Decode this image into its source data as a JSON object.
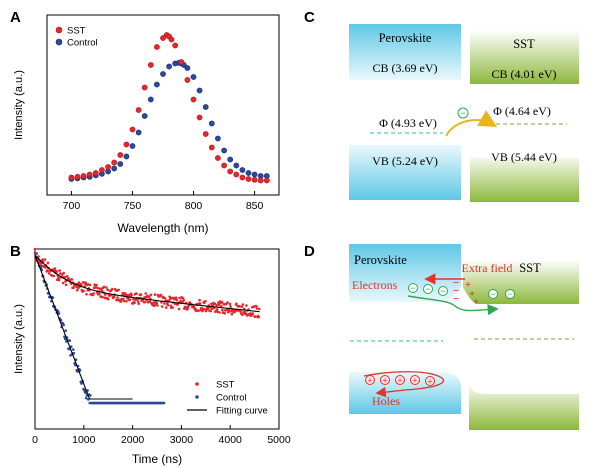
{
  "panels": {
    "A": {
      "letter": "A",
      "xlabel": "Wavelength (nm)",
      "ylabel": "Intensity (a.u.)",
      "legend": [
        "SST",
        "Control"
      ]
    },
    "B": {
      "letter": "B",
      "xlabel": "Time (ns)",
      "ylabel": "Intensity (a.u.)",
      "legend": [
        "SST",
        "Control",
        "Fitting curve"
      ]
    },
    "C": {
      "letter": "C",
      "left_material": "Perovskite",
      "right_material": "SST",
      "cb_left": "CB (3.69 eV)",
      "cb_right": "CB (4.01 eV)",
      "phi_left": "Φ (4.93 eV)",
      "phi_right": "Φ (4.64 eV)",
      "vb_left": "VB (5.24 eV)",
      "vb_right": "VB (5.44 eV)",
      "electron_symbol": "−"
    },
    "D": {
      "letter": "D",
      "left_material": "Perovskite",
      "right_material": "SST",
      "field_label": "Extra field",
      "electrons_label": "Electrons",
      "holes_label": "Holes",
      "minus": "−",
      "plus": "+"
    }
  },
  "colors": {
    "sst": "#e8262b",
    "control": "#2b4a9b",
    "fit": "#000000",
    "perovskite": "#5ec8e6",
    "sst_material": "#8db83c",
    "label_red": "#e0332b",
    "arrow_green": "#2fa84f",
    "arrow_gold": "#e8b51c",
    "dash_cyan": "#3ab0d8",
    "dash_green": "#7ba63a"
  },
  "chart_data": [
    {
      "panel": "A",
      "type": "scatter",
      "xlabel": "Wavelength (nm)",
      "ylabel": "Intensity (a.u.)",
      "xlim": [
        680,
        870
      ],
      "xticks": [
        700,
        750,
        800,
        850
      ],
      "y_ticks_shown": false,
      "series": [
        {
          "name": "SST",
          "x": [
            700,
            705,
            710,
            715,
            720,
            725,
            730,
            735,
            740,
            745,
            750,
            755,
            760,
            765,
            770,
            775,
            778,
            780,
            782,
            785,
            790,
            795,
            800,
            805,
            810,
            815,
            820,
            825,
            830,
            835,
            840,
            845,
            850,
            855,
            860
          ],
          "y": [
            0.05,
            0.055,
            0.06,
            0.07,
            0.08,
            0.1,
            0.12,
            0.15,
            0.2,
            0.27,
            0.37,
            0.5,
            0.65,
            0.8,
            0.92,
            0.98,
            1.0,
            0.99,
            0.97,
            0.93,
            0.82,
            0.7,
            0.57,
            0.45,
            0.34,
            0.25,
            0.18,
            0.13,
            0.09,
            0.07,
            0.05,
            0.04,
            0.035,
            0.03,
            0.03
          ]
        },
        {
          "name": "Control",
          "x": [
            700,
            705,
            710,
            715,
            720,
            725,
            730,
            735,
            740,
            745,
            750,
            755,
            760,
            765,
            770,
            775,
            780,
            785,
            788,
            790,
            792,
            795,
            800,
            805,
            810,
            815,
            820,
            825,
            830,
            835,
            840,
            845,
            850,
            855,
            860
          ],
          "y": [
            0.04,
            0.045,
            0.05,
            0.055,
            0.065,
            0.075,
            0.09,
            0.11,
            0.14,
            0.19,
            0.26,
            0.35,
            0.46,
            0.57,
            0.67,
            0.74,
            0.79,
            0.81,
            0.815,
            0.81,
            0.8,
            0.78,
            0.72,
            0.63,
            0.52,
            0.41,
            0.31,
            0.23,
            0.17,
            0.13,
            0.1,
            0.08,
            0.07,
            0.06,
            0.06
          ]
        }
      ]
    },
    {
      "panel": "B",
      "type": "scatter",
      "xlabel": "Time (ns)",
      "ylabel": "Intensity (a.u.)",
      "xlim": [
        0,
        5000
      ],
      "xticks": [
        0,
        1000,
        2000,
        3000,
        4000,
        5000
      ],
      "y_ticks_shown": false,
      "y_scale": "log",
      "series": [
        {
          "name": "SST",
          "x_range": [
            0,
            4600
          ],
          "model": "y = 0.55*exp(-t/450) + 0.45*exp(-t/8000) (normalized)"
        },
        {
          "name": "Control",
          "x_range": [
            0,
            2650
          ],
          "model": "y = exp(-t/320) (normalized)"
        },
        {
          "name": "Fitting curve",
          "x_range": [
            0,
            4600
          ]
        }
      ]
    }
  ]
}
